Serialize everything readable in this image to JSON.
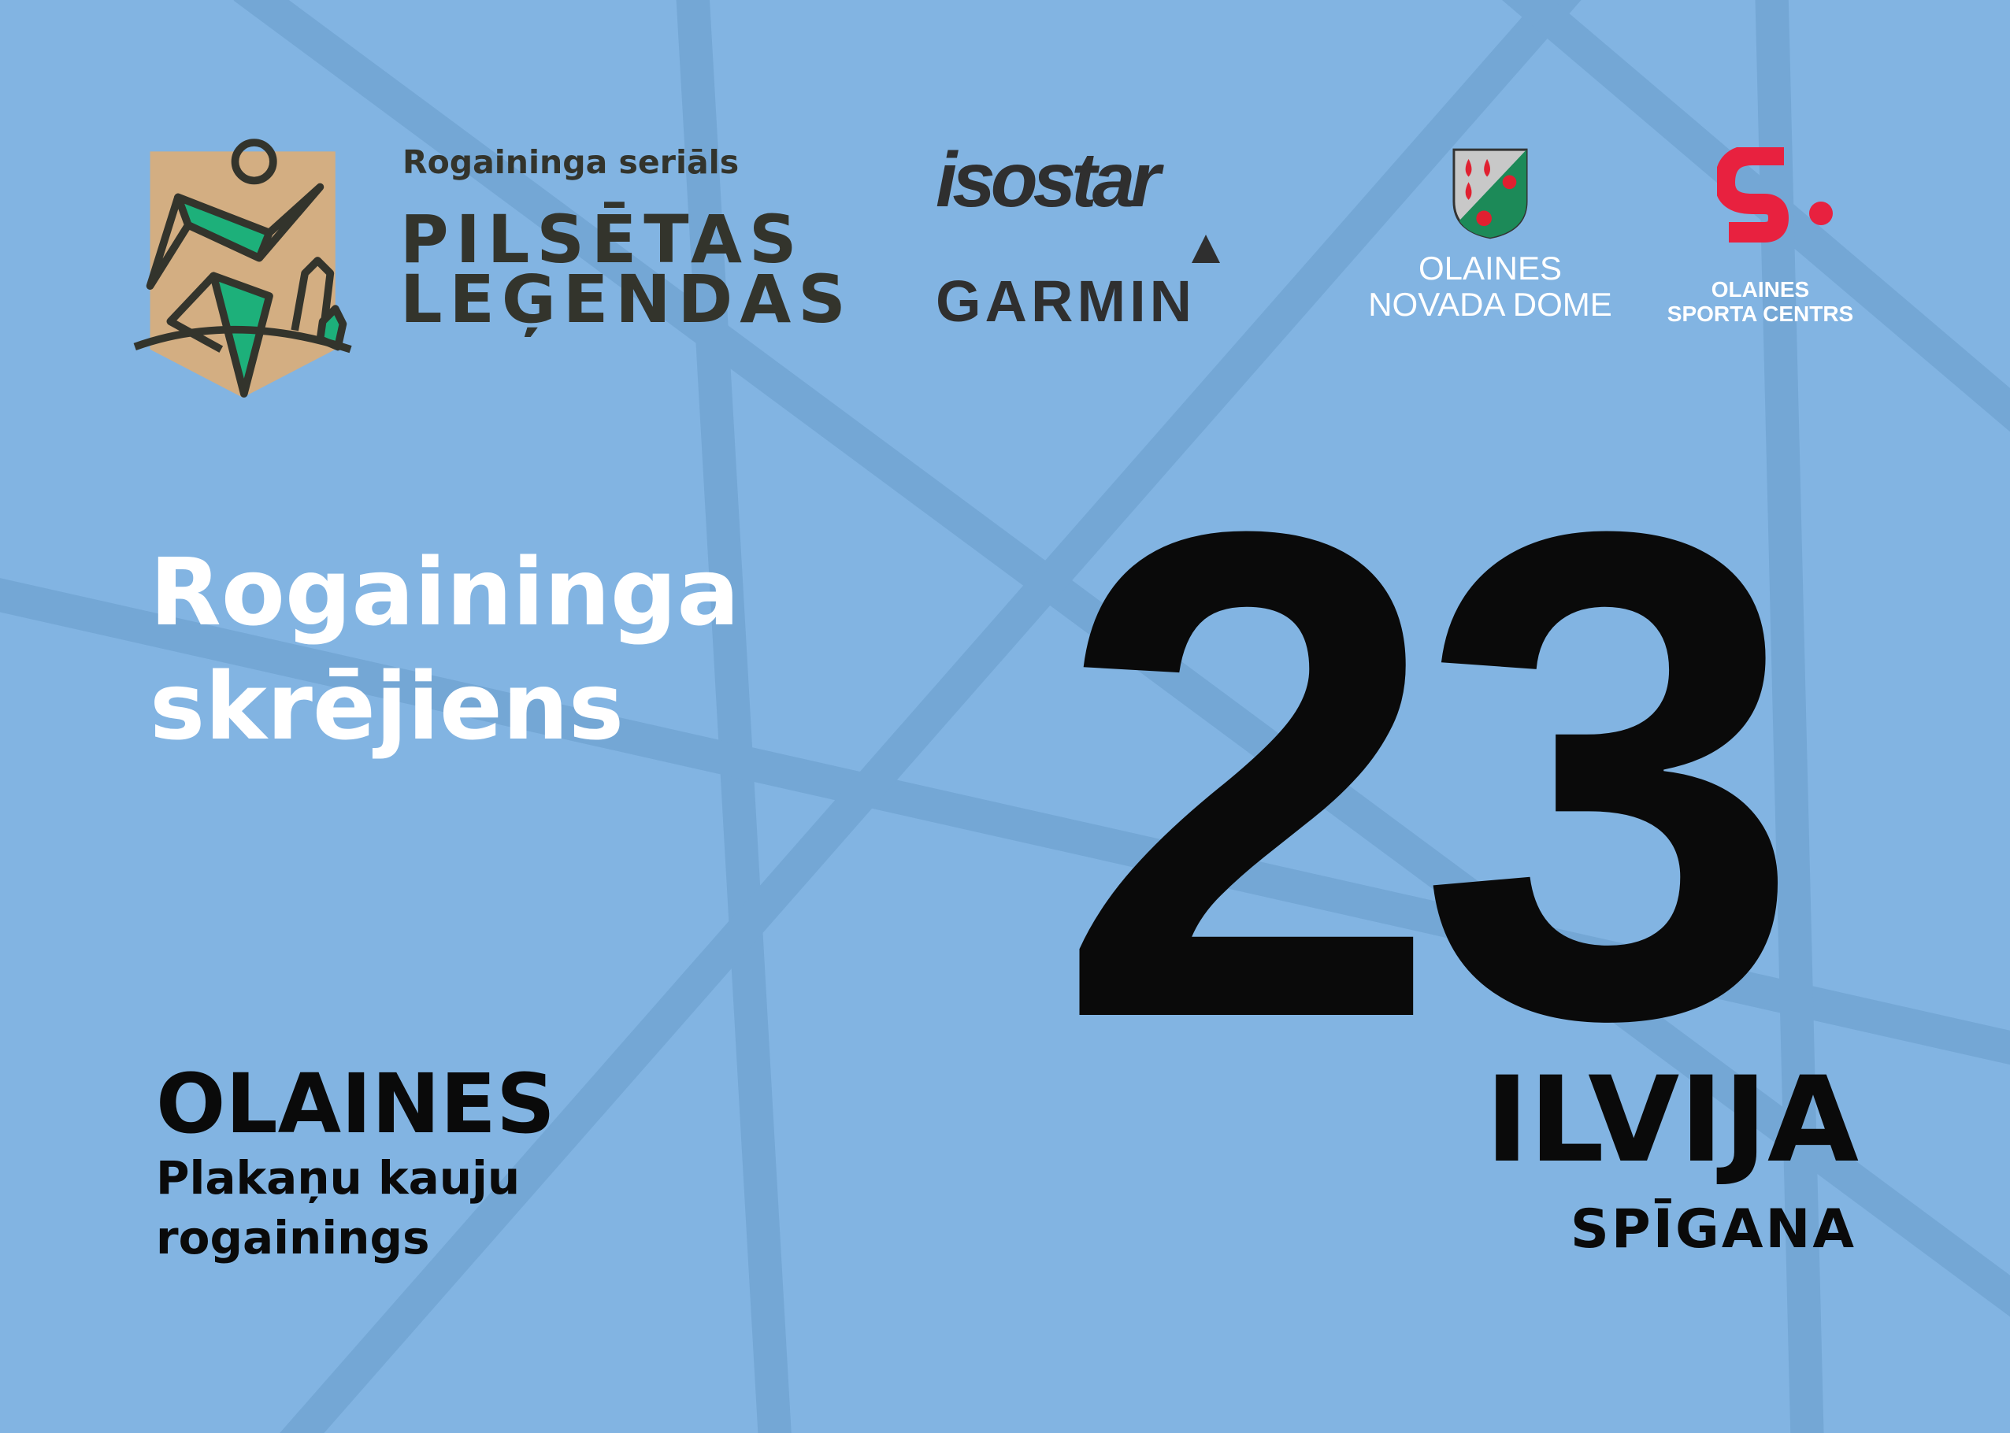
{
  "colors": {
    "background": "#82b4e2",
    "lines": "#74a7d5",
    "dark_text": "#33342c",
    "logo_green": "#1db07a",
    "logo_tan": "#d3ae82",
    "red": "#e8213f"
  },
  "series": {
    "subtitle": "Rogaininga seriāls",
    "title_line1": "PILSĒTAS",
    "title_line2": "LEĢENDAS"
  },
  "sponsors": {
    "isostar": "isostar",
    "garmin": "GARMIN",
    "novada_dome": {
      "line1": "OLAINES",
      "line2": "NOVADA DOME"
    },
    "sporta_centrs": {
      "line1": "OLAINES",
      "line2": "SPORTA CENTRS"
    }
  },
  "event": {
    "line1": "Rogaininga",
    "line2": "skrējiens"
  },
  "bib_number": "23",
  "location": {
    "city": "OLAINES",
    "line1": "Plakaņu kauju",
    "line2": "rogainings"
  },
  "participant": {
    "first_name": "ILVIJA",
    "last_name": "SPĪGANA"
  }
}
